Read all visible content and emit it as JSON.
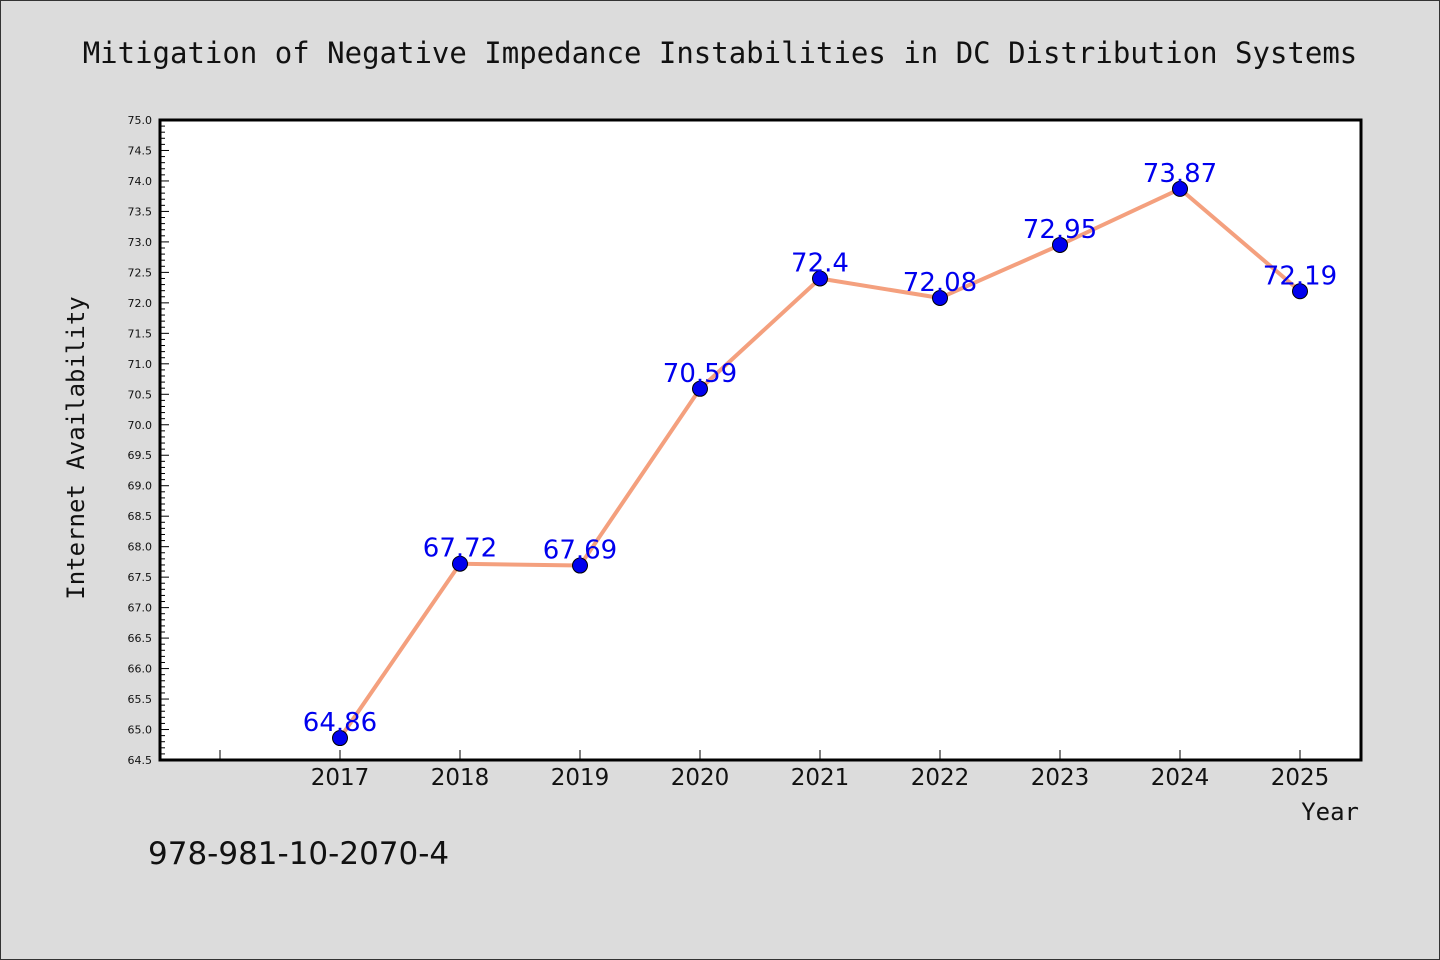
{
  "colors": {
    "background": "#dcdcdc",
    "plot_background": "#ffffff",
    "line": "#f4a07e",
    "marker": "#0000ee",
    "data_label": "#0000ee",
    "text": "#111111"
  },
  "footnote": "978-981-10-2070-4",
  "chart_data": {
    "type": "line",
    "title": "Mitigation of Negative Impedance Instabilities in DC Distribution Systems",
    "xlabel": "Year",
    "ylabel": "Internet Availability",
    "x": [
      "2017",
      "2018",
      "2019",
      "2020",
      "2021",
      "2022",
      "2023",
      "2024",
      "2025"
    ],
    "series": [
      {
        "values": [
          64.86,
          67.72,
          67.69,
          70.59,
          72.4,
          72.08,
          72.95,
          73.87,
          72.19
        ],
        "data_labels": [
          "64.86",
          "67.72",
          "67.69",
          "70.59",
          "72.4",
          "72.08",
          "72.95",
          "73.87",
          "72.19"
        ]
      }
    ],
    "ylim": [
      64.5,
      75.0
    ],
    "yticks": [
      "64.5",
      "65.0",
      "65.5",
      "66.0",
      "66.5",
      "67.0",
      "67.5",
      "68.0",
      "68.5",
      "69.0",
      "69.5",
      "70.0",
      "70.5",
      "71.0",
      "71.5",
      "72.0",
      "72.5",
      "73.0",
      "73.5",
      "74.0",
      "74.5",
      "75.0"
    ],
    "grid": false,
    "legend": "none"
  }
}
